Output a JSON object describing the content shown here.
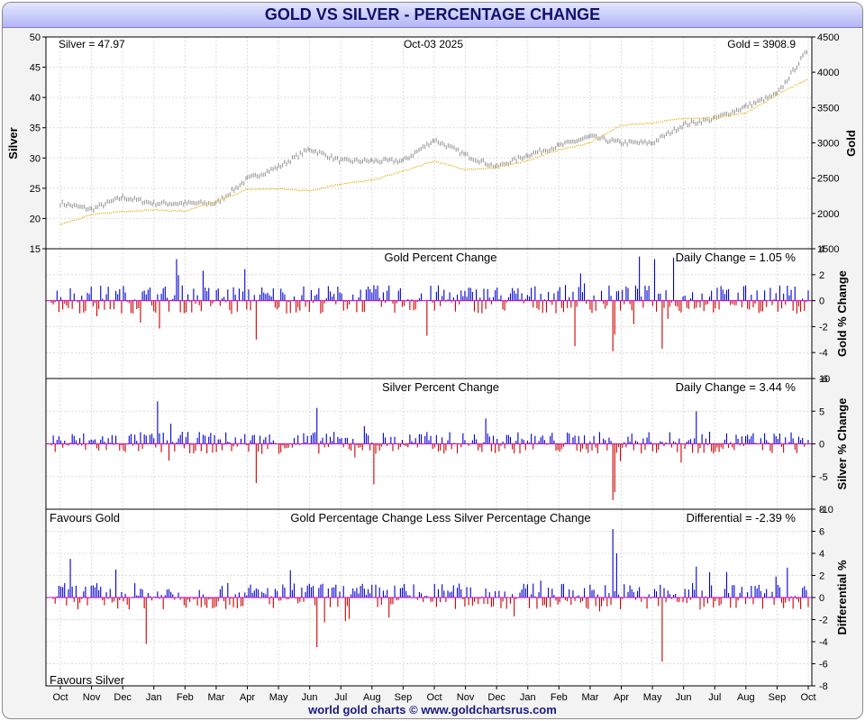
{
  "header": {
    "title": "GOLD VS SILVER - PERCENTAGE CHANGE"
  },
  "footer": {
    "text": "world gold charts © www.goldchartsrus.com"
  },
  "colors": {
    "gold": "#e3a700",
    "silver": "#9a9a9a",
    "up": "#0000cc",
    "down": "#cc0000",
    "grid": "#dcdcdc"
  },
  "chart_data": [
    {
      "id": "price",
      "type": "line",
      "date_label": "Oct-03  2025",
      "silver_label": "Silver = 47.97",
      "gold_label": "Gold = 3908.9",
      "ylabel_left": "Silver",
      "ylabel_right": "Gold",
      "left_axis": {
        "min": 15,
        "max": 50,
        "ticks": [
          15,
          20,
          25,
          30,
          35,
          40,
          45,
          50
        ]
      },
      "right_axis": {
        "min": 1500,
        "max": 4500,
        "ticks": [
          1500,
          2000,
          2500,
          3000,
          3500,
          4000,
          4500
        ]
      },
      "series": [
        {
          "name": "Silver",
          "axis": "left",
          "months": [
            "Oct",
            "Nov",
            "Dec",
            "Jan",
            "Feb",
            "Mar",
            "Apr",
            "May",
            "Jun",
            "Jul",
            "Aug",
            "Sep",
            "Oct",
            "Nov",
            "Dec",
            "Jan",
            "Feb",
            "Mar",
            "Apr",
            "May",
            "Jun",
            "Jul",
            "Aug",
            "Sep",
            "Oct"
          ],
          "values": [
            22.5,
            21.5,
            23.5,
            22.5,
            22.5,
            22.5,
            26.5,
            28.5,
            31.5,
            29.5,
            29.5,
            29.5,
            33.0,
            30.5,
            28.5,
            30.5,
            32.0,
            33.5,
            32.5,
            32.5,
            35.5,
            36.5,
            38.5,
            40.5,
            47.97
          ]
        },
        {
          "name": "Gold",
          "axis": "right",
          "months": [
            "Oct",
            "Nov",
            "Dec",
            "Jan",
            "Feb",
            "Mar",
            "Apr",
            "May",
            "Jun",
            "Jul",
            "Aug",
            "Sep",
            "Oct",
            "Nov",
            "Dec",
            "Jan",
            "Feb",
            "Mar",
            "Apr",
            "May",
            "Jun",
            "Jul",
            "Aug",
            "Sep",
            "Oct"
          ],
          "values": [
            1850,
            1980,
            2030,
            2050,
            2030,
            2170,
            2340,
            2350,
            2320,
            2420,
            2470,
            2600,
            2740,
            2620,
            2650,
            2750,
            2900,
            3000,
            3250,
            3280,
            3350,
            3350,
            3420,
            3680,
            3908.9
          ]
        }
      ]
    },
    {
      "id": "gold_pct",
      "type": "bar",
      "title": "Gold Percent Change",
      "daily_label": "Daily Change = 1.05 %",
      "ylabel": "Gold % Change",
      "ylim": [
        -6,
        4
      ],
      "ticks": [
        -6,
        -4,
        -2,
        0,
        2,
        4
      ]
    },
    {
      "id": "silver_pct",
      "type": "bar",
      "title": "Silver Percent Change",
      "daily_label": "Daily Change = 3.44 %",
      "ylabel": "Silver % Change",
      "ylim": [
        -10,
        10
      ],
      "ticks": [
        -10,
        -5,
        0,
        5,
        10
      ]
    },
    {
      "id": "diff",
      "type": "bar",
      "title": "Gold Percentage Change Less Silver Percentage Change",
      "daily_label": "Differential = -2.39 %",
      "favours_gold": "Favours Gold",
      "favours_silver": "Favours Silver",
      "ylabel": "Differential %",
      "ylim": [
        -8,
        8
      ],
      "ticks": [
        -8,
        -6,
        -4,
        -2,
        0,
        2,
        4,
        6,
        8
      ]
    }
  ],
  "x_axis": {
    "labels": [
      "Oct",
      "Nov",
      "Dec",
      "Jan",
      "Feb",
      "Mar",
      "Apr",
      "May",
      "Jun",
      "Jul",
      "Aug",
      "Sep",
      "Oct",
      "Nov",
      "Dec",
      "Jan",
      "Feb",
      "Mar",
      "Apr",
      "May",
      "Jun",
      "Jul",
      "Aug",
      "Sep",
      "Oct"
    ]
  }
}
